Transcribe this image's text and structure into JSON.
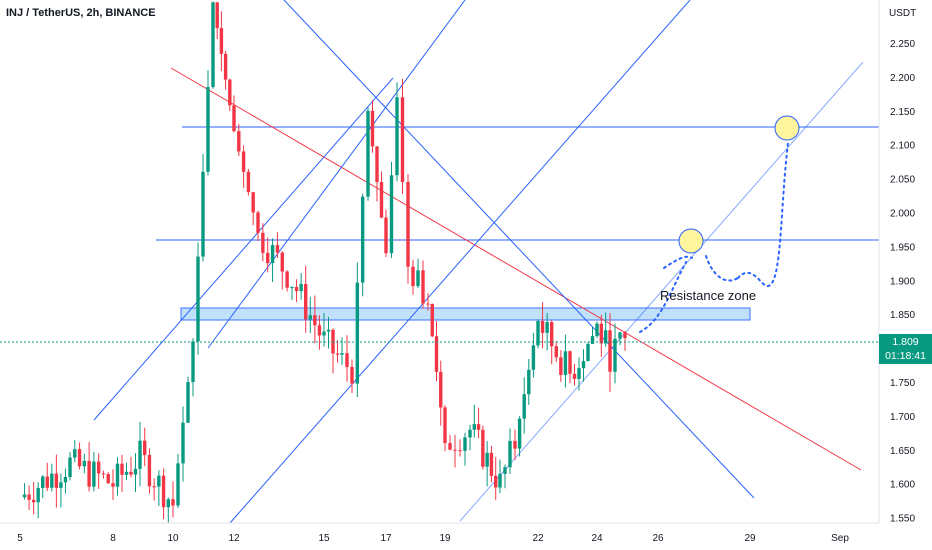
{
  "header": {
    "symbol_title": "INJ / TetherUS, 2h, BINANCE",
    "currency": "USDT"
  },
  "price_badge": {
    "price": "1.809",
    "countdown": "01:18:41",
    "color": "#089981"
  },
  "annotation": {
    "text": "Resistance zone"
  },
  "colors": {
    "up": "#089981",
    "down": "#f23645",
    "trendline_blue": "#2962ff",
    "trendline_red": "#f23645",
    "zone_fill": "#bbdefb",
    "marker": "#fff59d"
  },
  "chart_data": {
    "type": "candlestick",
    "title": "INJ / TetherUS, 2h, BINANCE",
    "y_axis": {
      "unit": "USDT",
      "range": [
        1.53,
        2.32
      ],
      "ticks": [
        "2.250",
        "2.200",
        "2.150",
        "2.100",
        "2.050",
        "2.000",
        "1.950",
        "1.900",
        "1.850",
        "1.800",
        "1.750",
        "1.700",
        "1.650",
        "1.600",
        "1.550"
      ]
    },
    "x_axis": {
      "ticks": [
        "5",
        "8",
        "10",
        "12",
        "15",
        "17",
        "19",
        "22",
        "24",
        "26",
        "29",
        "Sep"
      ]
    },
    "current_price": 1.809,
    "price_path_approx": [
      {
        "x": "5",
        "price": 1.58
      },
      {
        "x": "7",
        "price": 1.63
      },
      {
        "x": "8",
        "price": 1.6
      },
      {
        "x": "9",
        "price": 1.64
      },
      {
        "x": "10",
        "price": 1.57
      },
      {
        "x": "10.5",
        "price": 1.81
      },
      {
        "x": "11",
        "price": 2.31
      },
      {
        "x": "12",
        "price": 2.12
      },
      {
        "x": "13",
        "price": 1.97
      },
      {
        "x": "14",
        "price": 1.9
      },
      {
        "x": "15",
        "price": 1.81
      },
      {
        "x": "15.5",
        "price": 1.78
      },
      {
        "x": "16",
        "price": 1.77
      },
      {
        "x": "16.5",
        "price": 2.15
      },
      {
        "x": "17",
        "price": 1.94
      },
      {
        "x": "17.5",
        "price": 2.17
      },
      {
        "x": "18",
        "price": 1.92
      },
      {
        "x": "18.5",
        "price": 1.87
      },
      {
        "x": "19",
        "price": 1.66
      },
      {
        "x": "20",
        "price": 1.68
      },
      {
        "x": "21",
        "price": 1.6
      },
      {
        "x": "21.5",
        "price": 1.66
      },
      {
        "x": "22",
        "price": 1.84
      },
      {
        "x": "23",
        "price": 1.76
      },
      {
        "x": "24",
        "price": 1.83
      },
      {
        "x": "24.5",
        "price": 1.79
      },
      {
        "x": "25",
        "price": 1.809
      }
    ],
    "horizontal_lines": [
      2.125,
      1.96
    ],
    "zone": {
      "label": "Resistance zone",
      "from": 1.842,
      "to": 1.857
    },
    "targets": [
      1.955,
      2.117
    ]
  }
}
